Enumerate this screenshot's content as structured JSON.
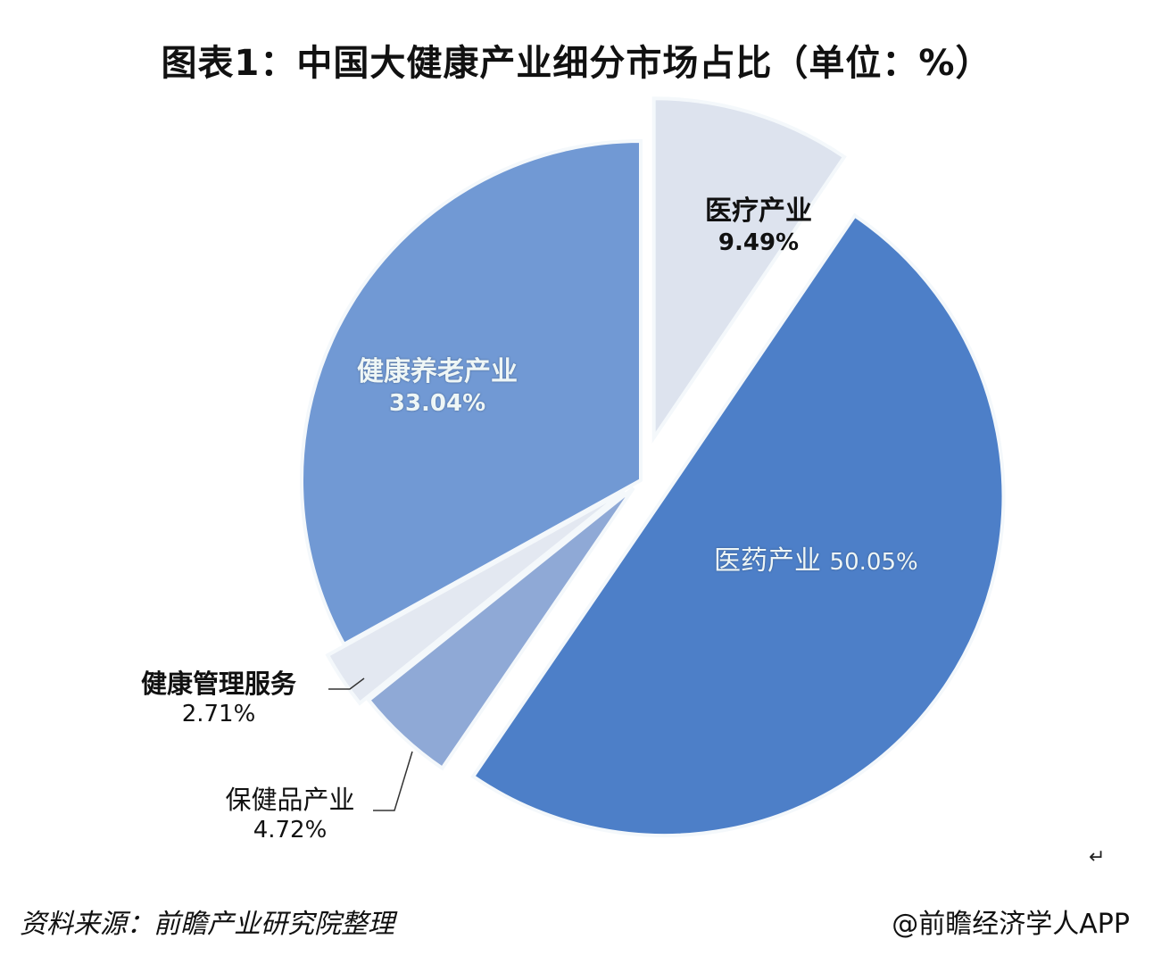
{
  "title": "图表1：中国大健康产业细分市场占比（单位：%）",
  "chart_data": {
    "type": "pie",
    "title": "图表1：中国大健康产业细分市场占比（单位：%）",
    "unit": "%",
    "start_angle": "12 o'clock, clockwise",
    "exploded": true,
    "legend": "none (direct labels)",
    "slices": [
      {
        "label": "医疗产业",
        "value": 9.49,
        "color": "#dde3ee"
      },
      {
        "label": "医药产业",
        "value": 50.05,
        "color": "#4d7fc8"
      },
      {
        "label": "保健品产业",
        "value": 4.72,
        "color": "#8fa9d6"
      },
      {
        "label": "健康管理服务",
        "value": 2.71,
        "color": "#e3e8f1"
      },
      {
        "label": "健康养老产业",
        "value": 33.04,
        "color": "#7199d4"
      }
    ]
  },
  "labels": {
    "medical": {
      "name": "医疗产业",
      "value": "9.49%"
    },
    "pharma": {
      "name": "医药产业",
      "value": "50.05%"
    },
    "supplements": {
      "name": "保健品产业",
      "value": "4.72%"
    },
    "health_mgmt": {
      "name": "健康管理服务",
      "value": "2.71%"
    },
    "elderly_care": {
      "name": "健康养老产业",
      "value": "33.04%"
    }
  },
  "footer": {
    "source": "资料来源：前瞻产业研究院整理",
    "watermark": "@前瞻经济学人APP",
    "return_mark": "↵"
  }
}
